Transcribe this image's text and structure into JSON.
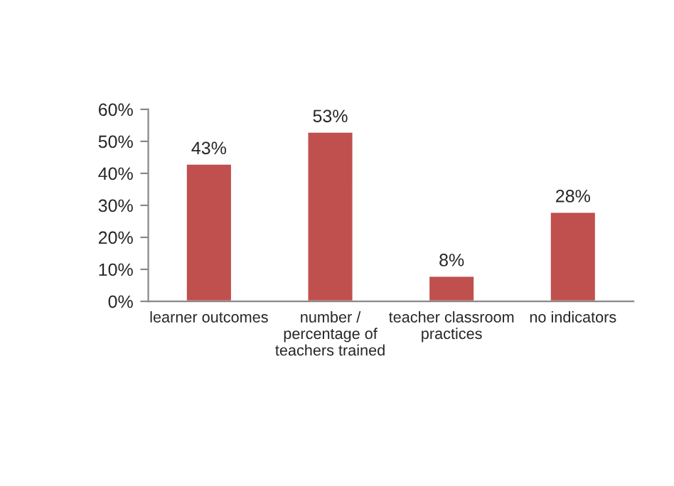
{
  "chart_data": {
    "type": "bar",
    "categories": [
      "learner outcomes",
      "number /\npercentage of\nteachers trained",
      "teacher classroom\npractices",
      "no indicators"
    ],
    "values": [
      43,
      53,
      8,
      28
    ],
    "value_labels": [
      "43%",
      "53%",
      "8%",
      "28%"
    ],
    "color": "#c0504d",
    "ylim": [
      0,
      60
    ],
    "yticks": [
      {
        "value": 0,
        "label": "0%"
      },
      {
        "value": 10,
        "label": "10%"
      },
      {
        "value": 20,
        "label": "20%"
      },
      {
        "value": 30,
        "label": "30%"
      },
      {
        "value": 40,
        "label": "40%"
      },
      {
        "value": 50,
        "label": "50%"
      },
      {
        "value": 60,
        "label": "60%"
      }
    ],
    "grid": false,
    "legend": false
  }
}
